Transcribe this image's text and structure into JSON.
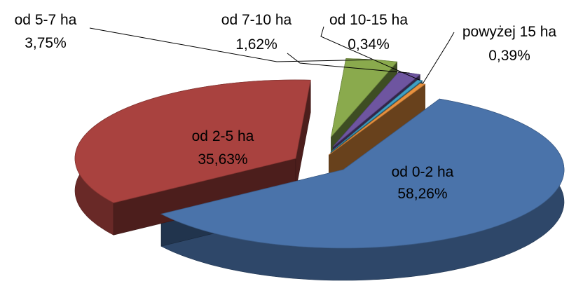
{
  "chart_data": {
    "type": "pie",
    "variant": "3d-exploded",
    "categories": [
      "od 0-2 ha",
      "od 2-5 ha",
      "od 5-7 ha",
      "od 7-10 ha",
      "od 10-15 ha",
      "powyżej 15 ha"
    ],
    "values": [
      58.26,
      35.63,
      3.75,
      1.62,
      0.34,
      0.39
    ],
    "value_labels": [
      "58,26%",
      "35,63%",
      "3,75%",
      "1,62%",
      "0,34%",
      "0,39%"
    ],
    "colors": [
      "#4a73aa",
      "#a9423f",
      "#8aaa4d",
      "#6e55a0",
      "#3fa0c4",
      "#e8913f"
    ],
    "title": "",
    "legend": false,
    "data_labels": "category-and-percent"
  }
}
